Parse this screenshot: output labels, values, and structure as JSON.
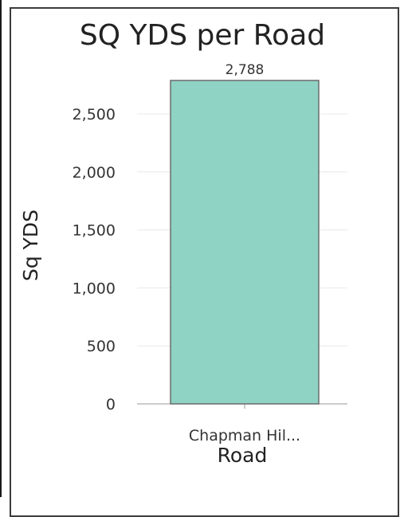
{
  "chart_data": {
    "type": "bar",
    "title": "SQ YDS per Road",
    "xlabel": "Road",
    "ylabel": "Sq YDS",
    "categories": [
      "Chapman Hil..."
    ],
    "values": [
      2788
    ],
    "data_labels": [
      "2,788"
    ],
    "yticks": [
      0,
      500,
      1000,
      1500,
      2000,
      2500
    ],
    "ytick_labels": [
      "0",
      "500",
      "1,000",
      "1,500",
      "2,000",
      "2,500"
    ],
    "ylim": [
      0,
      2788
    ],
    "grid": true,
    "colors": {
      "bar_fill": "#8fd3c5",
      "bar_stroke": "#6b6b6b",
      "grid": "#e8e8e8",
      "axis": "#9a9a9a"
    }
  }
}
